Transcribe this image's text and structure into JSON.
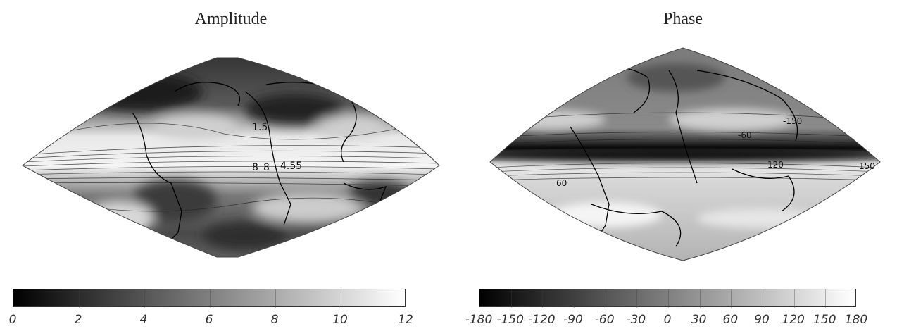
{
  "panels": {
    "amplitude": {
      "title": "Amplitude",
      "colorbar": {
        "gradient": [
          "#000000",
          "#ffffff"
        ],
        "ticks": [
          "0",
          "2",
          "4",
          "6",
          "8",
          "10",
          "12"
        ]
      },
      "contour_labels": [
        "1.5",
        "8",
        "8",
        "4.55"
      ]
    },
    "phase": {
      "title": "Phase",
      "colorbar": {
        "gradient": [
          "#000000",
          "#ffffff"
        ],
        "ticks": [
          "-180",
          "-150",
          "-120",
          "-90",
          "-60",
          "-30",
          "0",
          "30",
          "60",
          "90",
          "120",
          "150",
          "180"
        ]
      },
      "contour_labels": [
        "-150",
        "-60",
        "120",
        "60",
        "150"
      ]
    }
  }
}
